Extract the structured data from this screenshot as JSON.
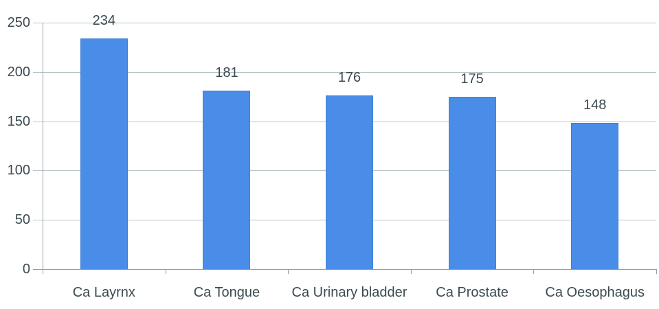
{
  "chart_data": {
    "type": "bar",
    "categories": [
      "Ca Layrnx",
      "Ca Tongue",
      "Ca Urinary bladder",
      "Ca Prostate",
      "Ca Oesophagus"
    ],
    "values": [
      234,
      181,
      176,
      175,
      148
    ],
    "title": "",
    "xlabel": "",
    "ylabel": "",
    "ylim": [
      0,
      250
    ],
    "ytick_interval": 50,
    "ytick_labels": [
      "0",
      "50",
      "100",
      "150",
      "200",
      "250"
    ],
    "grid": true,
    "legend": false,
    "data_labels_shown": true,
    "colors": {
      "bar_fill": "#4a8de8",
      "bar_edge": "#3f80d2",
      "gridline": "#b6c2c6",
      "axis": "#8fa0a6",
      "text": "#3b4a51",
      "background": "#ffffff"
    }
  }
}
